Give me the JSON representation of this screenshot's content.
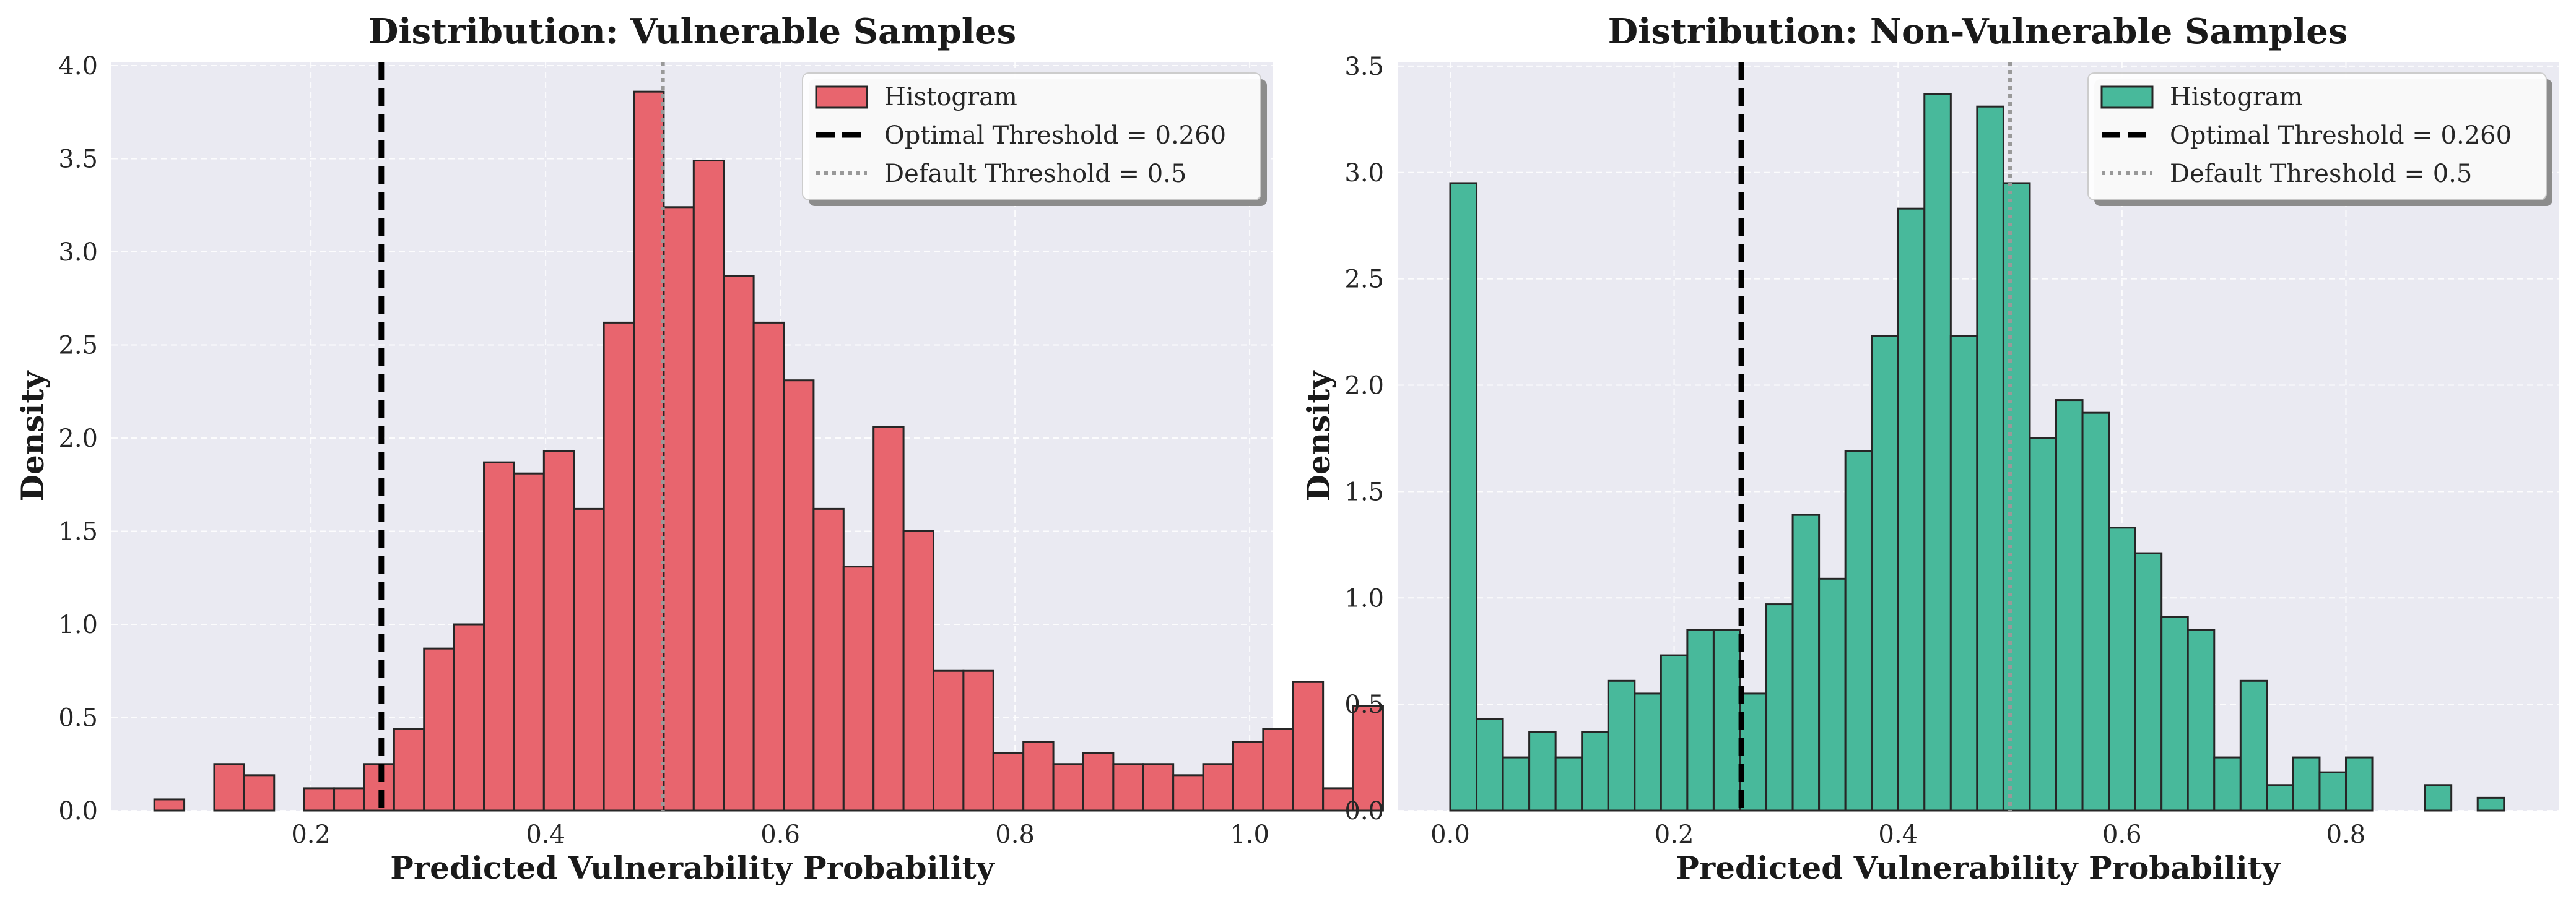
{
  "chart_data": [
    {
      "type": "bar",
      "title": "Distribution: Vulnerable Samples",
      "xlabel": "Predicted Vulnerability Probability",
      "ylabel": "Density",
      "xlim": [
        0.03,
        1.02
      ],
      "ylim": [
        0,
        4.02
      ],
      "xticks": [
        0.2,
        0.4,
        0.6,
        0.8,
        1.0
      ],
      "xtick_labels": [
        "0.2",
        "0.4",
        "0.6",
        "0.8",
        "1.0"
      ],
      "yticks": [
        0,
        0.5,
        1.0,
        1.5,
        2.0,
        2.5,
        3.0,
        3.5,
        4.0
      ],
      "ytick_labels": [
        "0.0",
        "0.5",
        "1.0",
        "1.5",
        "2.0",
        "2.5",
        "3.0",
        "3.5",
        "4.0"
      ],
      "bin_start": 0.0665,
      "bin_width": 0.02554,
      "values": [
        0.06,
        0,
        0.25,
        0.19,
        0,
        0.12,
        0.12,
        0.25,
        0.44,
        0.87,
        1.0,
        1.87,
        1.81,
        1.93,
        1.62,
        2.62,
        3.86,
        3.24,
        3.49,
        2.87,
        2.62,
        2.31,
        1.62,
        1.31,
        2.06,
        1.5,
        0.75,
        0.75,
        0.31,
        0.37,
        0.25,
        0.31,
        0.25,
        0.25,
        0.19,
        0.25,
        0.37,
        0.44,
        0.69,
        0.12,
        0.56
      ],
      "color": "#e8656e",
      "edge_color": "#262626",
      "grid": true,
      "background": "#eaeaf2",
      "legend_position": "top-right",
      "legend": [
        {
          "kind": "patch",
          "label": "Histogram"
        },
        {
          "kind": "dashed",
          "label": "Optimal Threshold = 0.260"
        },
        {
          "kind": "dotted",
          "label": "Default Threshold = 0.5"
        }
      ],
      "vlines": [
        {
          "x": 0.26,
          "style": "dashed",
          "color": "#000000"
        },
        {
          "x": 0.5,
          "style": "dotted",
          "color": "#999999"
        }
      ]
    },
    {
      "type": "bar",
      "title": "Distribution: Non-Vulnerable Samples",
      "xlabel": "Predicted Vulnerability Probability",
      "ylabel": "Density",
      "xlim": [
        -0.047,
        0.99
      ],
      "ylim": [
        0,
        3.52
      ],
      "xticks": [
        0.0,
        0.2,
        0.4,
        0.6,
        0.8
      ],
      "xtick_labels": [
        "0.0",
        "0.2",
        "0.4",
        "0.6",
        "0.8"
      ],
      "yticks": [
        0,
        0.5,
        1.0,
        1.5,
        2.0,
        2.5,
        3.0,
        3.5
      ],
      "ytick_labels": [
        "0.0",
        "0.5",
        "1.0",
        "1.5",
        "2.0",
        "2.5",
        "3.0",
        "3.5"
      ],
      "bin_start": 0.0,
      "bin_width": 0.02353,
      "values": [
        2.95,
        0.43,
        0.25,
        0.37,
        0.25,
        0.37,
        0.61,
        0.55,
        0.73,
        0.85,
        0.85,
        0.55,
        0.97,
        1.39,
        1.09,
        1.69,
        2.23,
        2.83,
        3.37,
        2.23,
        3.31,
        2.95,
        1.75,
        1.93,
        1.87,
        1.33,
        1.21,
        0.91,
        0.85,
        0.25,
        0.61,
        0.12,
        0.25,
        0.18,
        0.25,
        0,
        0,
        0.12,
        0,
        0.06
      ],
      "color": "#48b99b",
      "edge_color": "#262626",
      "grid": true,
      "background": "#eaeaf2",
      "legend_position": "top-right",
      "legend": [
        {
          "kind": "patch",
          "label": "Histogram"
        },
        {
          "kind": "dashed",
          "label": "Optimal Threshold = 0.260"
        },
        {
          "kind": "dotted",
          "label": "Default Threshold = 0.5"
        }
      ],
      "vlines": [
        {
          "x": 0.26,
          "style": "dashed",
          "color": "#000000"
        },
        {
          "x": 0.5,
          "style": "dotted",
          "color": "#999999"
        }
      ]
    }
  ]
}
